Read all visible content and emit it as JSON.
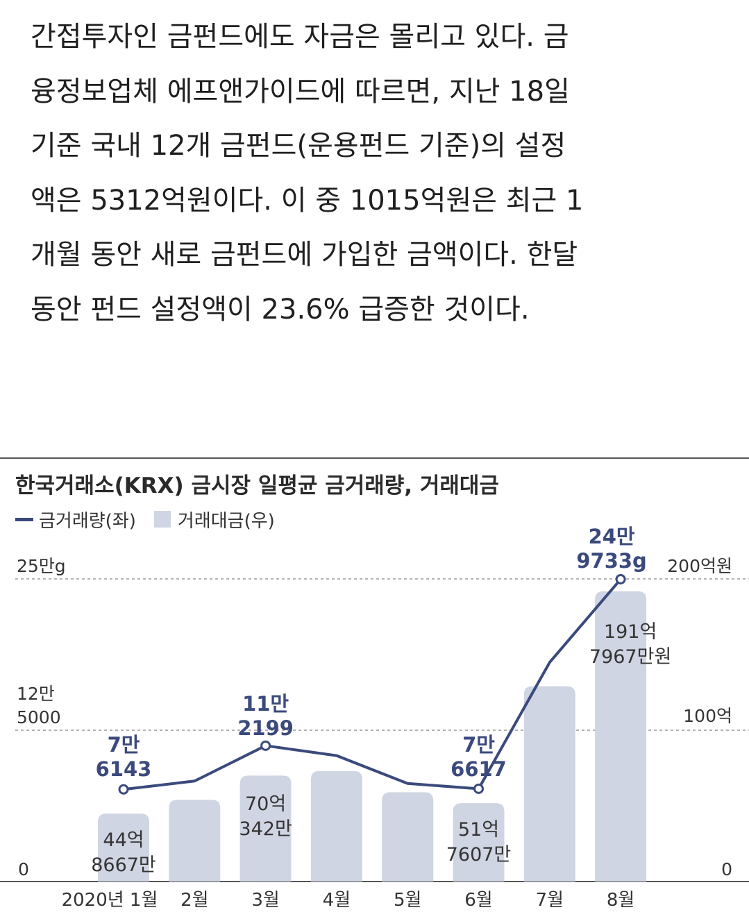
{
  "article": {
    "lines": [
      "간접투자인 금펀드에도 자금은 몰리고 있다. 금",
      "융정보업체 에프앤가이드에 따르면, 지난 18일",
      "기준 국내 12개 금펀드(운용펀드 기준)의 설정",
      "액은 5312억원이다. 이 중 1015억원은 최근 1",
      "개월 동안 새로 금펀드에 가입한 금액이다. 한달",
      "동안 펀드 설정액이 23.6% 급증한 것이다."
    ]
  },
  "chart_data": {
    "type": "bar+line",
    "title": "한국거래소(KRX) 금시장 일평균 금거래량, 거래대금",
    "legend": {
      "line_label": "금거래량(좌)",
      "bar_label": "거래대금(우)",
      "placement": "top-left"
    },
    "categories": [
      "2020년 1월",
      "2월",
      "3월",
      "4월",
      "5월",
      "6월",
      "7월",
      "8월"
    ],
    "left_axis": {
      "unit": "g",
      "range": [
        0,
        250000
      ],
      "tick_labels": [
        "0",
        "12만\n5000",
        "25만g"
      ]
    },
    "right_axis": {
      "unit": "억원",
      "range": [
        0,
        200
      ],
      "tick_labels": [
        "0",
        "100억",
        "200억원"
      ]
    },
    "series": [
      {
        "name": "거래대금(우)",
        "kind": "bar",
        "unit": "억원",
        "values": [
          44.87,
          54,
          70.03,
          73,
          59,
          51.76,
          129,
          191.8
        ]
      },
      {
        "name": "금거래량(좌)",
        "kind": "line",
        "unit": "g",
        "values": [
          76143,
          83000,
          112199,
          104000,
          81000,
          76617,
          181000,
          249733
        ]
      }
    ],
    "bar_labels": [
      {
        "index": 0,
        "text": "44억\n8667만"
      },
      {
        "index": 2,
        "text": "70억\n342만"
      },
      {
        "index": 5,
        "text": "51억\n7607만"
      },
      {
        "index": 7,
        "text": "191억\n7967만원"
      }
    ],
    "line_labels": [
      {
        "index": 0,
        "text": "7만\n6143"
      },
      {
        "index": 2,
        "text": "11만\n2199"
      },
      {
        "index": 5,
        "text": "7만\n6617"
      },
      {
        "index": 7,
        "text": "24만\n9733g"
      }
    ],
    "colors": {
      "line": "#3b4a7d",
      "bar": "#cfd5e2",
      "grid": "#9a9a9a",
      "axis": "#555555"
    },
    "grid": "dashed at 50% and 100% of range"
  }
}
